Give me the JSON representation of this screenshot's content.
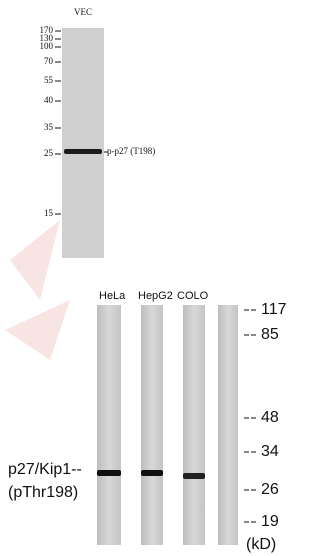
{
  "top_blot": {
    "lane_label": "VEC",
    "markers": [
      170,
      130,
      100,
      70,
      55,
      40,
      35,
      25,
      15
    ],
    "band_label": "p-p27 (T198)"
  },
  "bottom_blot": {
    "lanes": [
      "HeLa",
      "HepG2",
      "COLO"
    ],
    "markers": [
      117,
      85,
      48,
      34,
      26,
      19
    ],
    "unit": "(kD)",
    "target_label": [
      "p27/Kip1--",
      "(pThr198)"
    ]
  }
}
